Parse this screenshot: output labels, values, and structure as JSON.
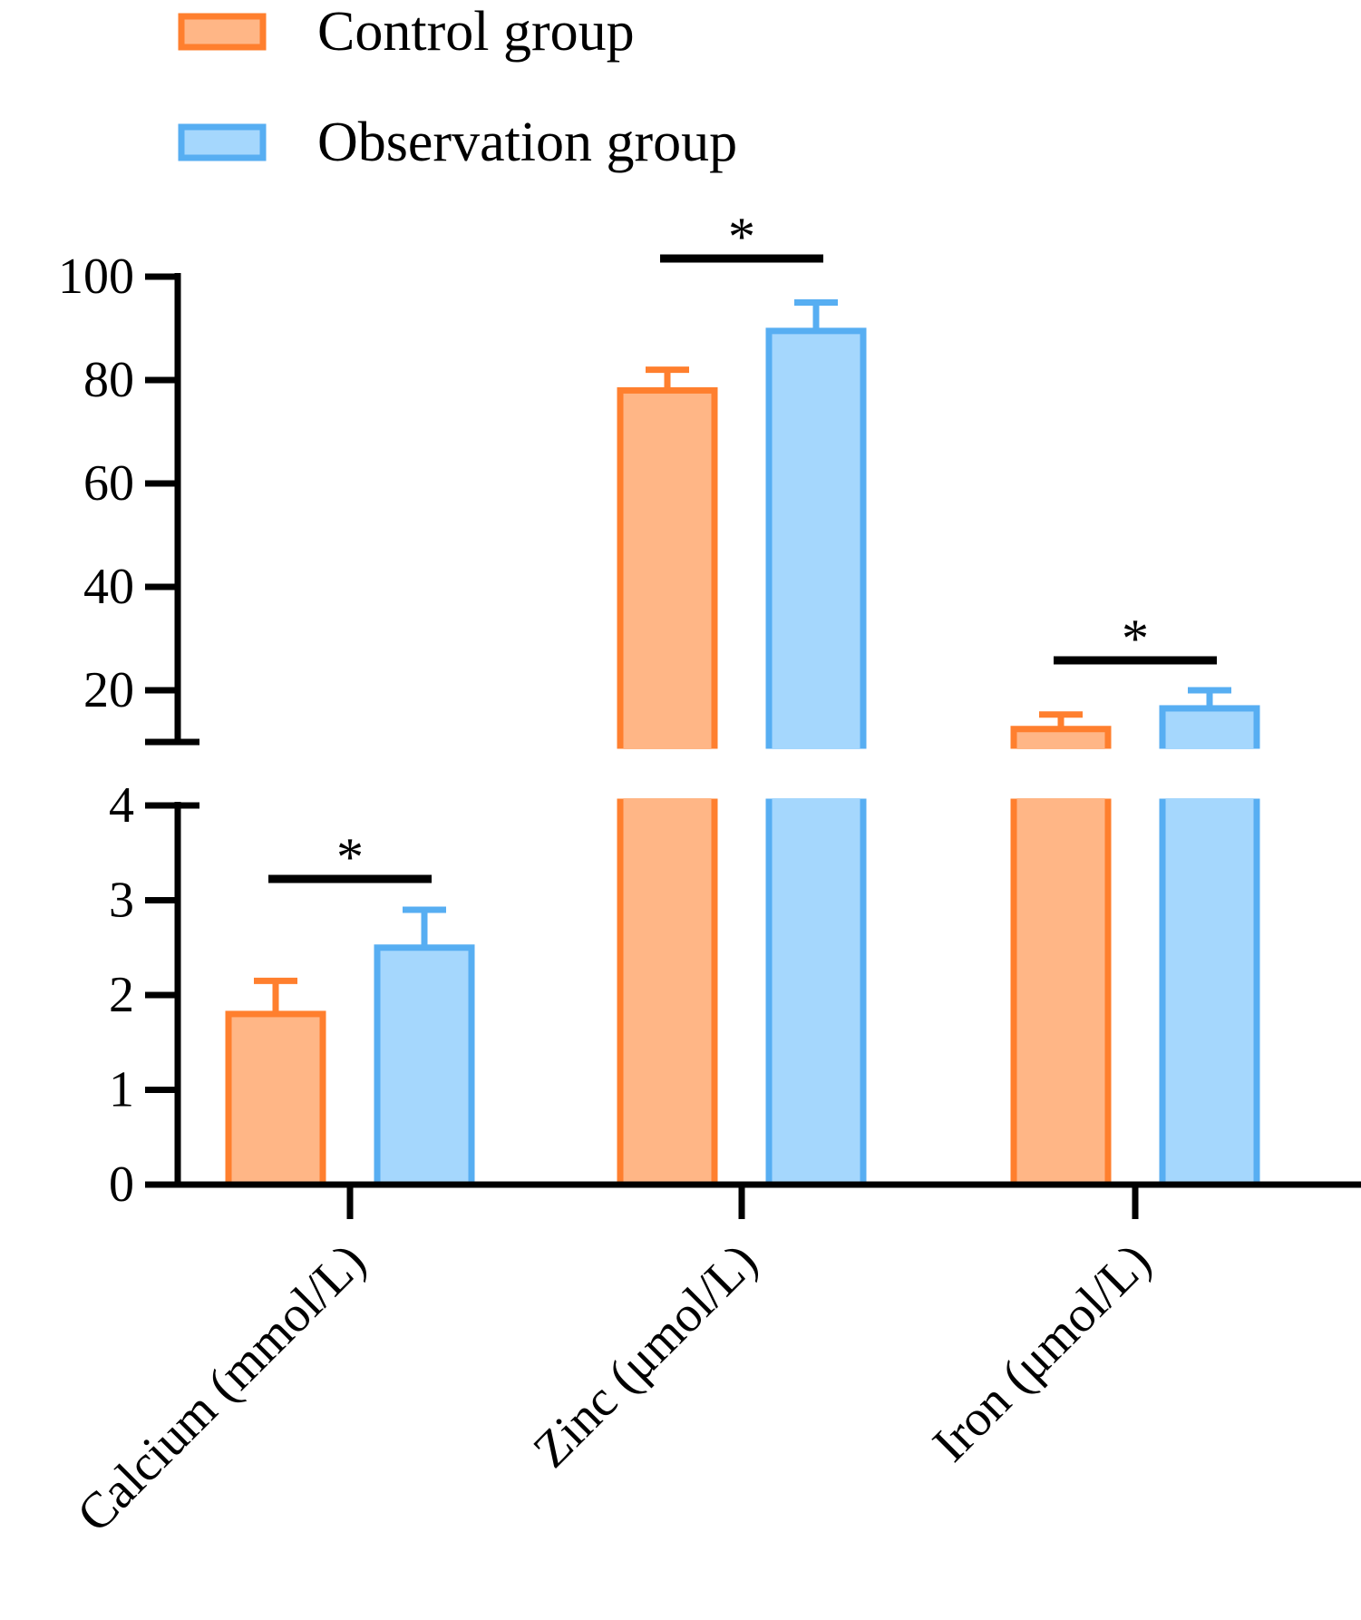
{
  "chart_data": {
    "type": "bar",
    "title": "",
    "xlabel": "",
    "ylabel": "",
    "categories": [
      "Calcium (mmol/L)",
      "Zinc (μmol/L)",
      "Iron (μmol/L)"
    ],
    "series": [
      {
        "name": "Control group",
        "values": [
          1.8,
          78.0,
          12.5
        ],
        "errors": [
          0.35,
          4.0,
          2.8
        ]
      },
      {
        "name": "Observation group",
        "values": [
          2.5,
          89.5,
          16.5
        ],
        "errors": [
          0.4,
          5.5,
          3.5
        ]
      }
    ],
    "y_axis_segments": [
      {
        "ylim": [
          0,
          4
        ],
        "ticks": [
          "0",
          "1",
          "2",
          "3",
          "4"
        ]
      },
      {
        "ylim": [
          10,
          100
        ],
        "ticks": [
          "20",
          "40",
          "60",
          "80",
          "100"
        ]
      }
    ],
    "significance": [
      {
        "category": "Calcium (mmol/L)",
        "label": "*"
      },
      {
        "category": "Zinc (μmol/L)",
        "label": "*"
      },
      {
        "category": "Iron (μmol/L)",
        "label": "*"
      }
    ],
    "legend_position": "top-left",
    "grid": false
  },
  "colors": {
    "control_fill": "#FFB686",
    "control_stroke": "#FF7F2E",
    "observation_fill": "#A5D7FD",
    "observation_stroke": "#57AEF2",
    "axis": "#000000"
  }
}
